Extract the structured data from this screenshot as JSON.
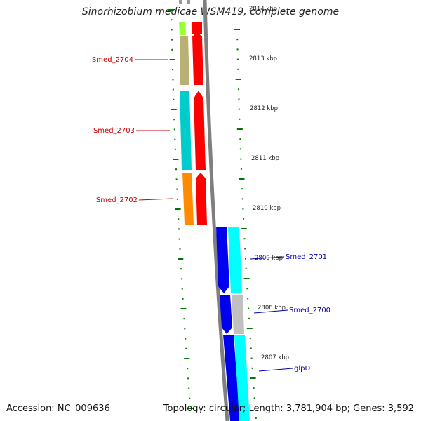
{
  "title": "Sinorhizobium medicae WSM419, complete genome",
  "accession_label": "Accession:",
  "accession": "NC_009636",
  "footer_right": {
    "topology_label": "Topology:",
    "topology": "circular;",
    "length_label": "Length:",
    "length": "3,781,904 bp;",
    "genes_label": "Genes:",
    "genes": "3,592"
  },
  "scale": {
    "unit": "kbp",
    "ticks": [
      "2814 kbp",
      "2813 kbp",
      "2812 kbp",
      "2811 kbp",
      "2810 kbp",
      "2809 kbp",
      "2808 kbp",
      "2807 kbp"
    ]
  },
  "genes": [
    {
      "name": "Smed_2704",
      "strand": "reverse",
      "color": "#cc0000"
    },
    {
      "name": "Smed_2703",
      "strand": "reverse",
      "color": "#cc0000"
    },
    {
      "name": "Smed_2702",
      "strand": "reverse",
      "color": "#cc0000"
    },
    {
      "name": "Smed_2701",
      "strand": "forward",
      "color": "#0000aa"
    },
    {
      "name": "Smed_2700",
      "strand": "forward",
      "color": "#0000aa"
    },
    {
      "name": "glpD",
      "strand": "forward",
      "color": "#0000aa"
    }
  ],
  "colors": {
    "reverse_strand": "#ff0000",
    "forward_strand": "#0000ee",
    "backbone": "#888888",
    "tick": "#007700",
    "olive": "#b9b074",
    "cyan": "#00cccc",
    "orange": "#ff8c00",
    "lime": "#99ff33",
    "light_gray": "#c0c0c0",
    "bright_cyan": "#00ffff"
  }
}
